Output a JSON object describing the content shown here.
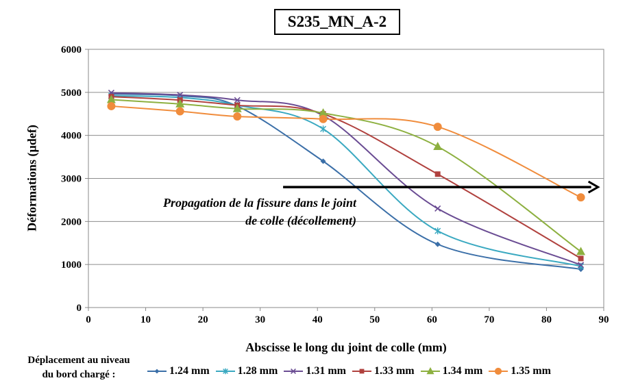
{
  "chart_data": {
    "type": "line",
    "title": "S235_MN_A-2",
    "xlabel": "Abscisse le long du joint de colle (mm)",
    "ylabel": "Déformations (µdef)",
    "xlim": [
      0,
      90
    ],
    "ylim": [
      0,
      6000
    ],
    "xticks": [
      0,
      10,
      20,
      30,
      40,
      50,
      60,
      70,
      80,
      90
    ],
    "yticks": [
      0,
      1000,
      2000,
      3000,
      4000,
      5000,
      6000
    ],
    "grid": true,
    "x": [
      4,
      16,
      26,
      41,
      61,
      86
    ],
    "legend_title": [
      "Déplacement au niveau",
      "du bord chargé :"
    ],
    "legend_position": "bottom",
    "annotation": {
      "lines": [
        "Propagation de la fissure dans le joint",
        "de colle (décollement)"
      ],
      "arrow": {
        "from": [
          34,
          2800
        ],
        "to": [
          89,
          2800
        ]
      }
    },
    "series": [
      {
        "name": "1.24 mm",
        "color": "#3B6FA8",
        "marker": "diamond",
        "values": [
          4960,
          4920,
          4680,
          3400,
          1470,
          890
        ]
      },
      {
        "name": "1.28 mm",
        "color": "#3AA9C1",
        "marker": "star",
        "values": [
          4920,
          4880,
          4700,
          4150,
          1780,
          960
        ]
      },
      {
        "name": "1.31 mm",
        "color": "#6A4C93",
        "marker": "x",
        "values": [
          4990,
          4940,
          4820,
          4460,
          2300,
          990
        ]
      },
      {
        "name": "1.33 mm",
        "color": "#B0413E",
        "marker": "square",
        "values": [
          4900,
          4820,
          4700,
          4500,
          3100,
          1140
        ]
      },
      {
        "name": "1.34 mm",
        "color": "#8DB040",
        "marker": "triangle",
        "values": [
          4830,
          4730,
          4620,
          4520,
          3740,
          1300
        ]
      },
      {
        "name": "1.35 mm",
        "color": "#F08C3C",
        "marker": "circle",
        "values": [
          4680,
          4560,
          4440,
          4380,
          4200,
          2560
        ]
      }
    ]
  }
}
